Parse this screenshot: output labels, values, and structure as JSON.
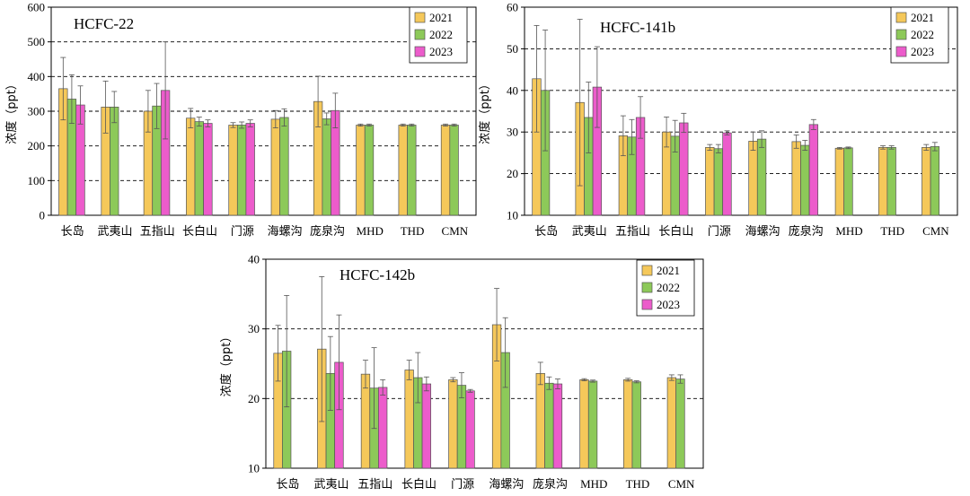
{
  "chart_data": [
    {
      "type": "bar",
      "title": "HCFC-22",
      "ylabel": "浓度（ppt）",
      "ylim": [
        0,
        600
      ],
      "yticks": [
        0,
        100,
        200,
        300,
        400,
        500,
        600
      ],
      "grid": "dashed-horizontal",
      "legend_position": "top-right",
      "categories": [
        "长岛",
        "武夷山",
        "五指山",
        "长白山",
        "门源",
        "海螺沟",
        "庞泉沟",
        "MHD",
        "THD",
        "CMN"
      ],
      "series": [
        {
          "name": "2021",
          "color": "#F5C85A",
          "values": [
            365,
            312,
            300,
            280,
            260,
            277,
            328,
            260,
            260,
            260
          ],
          "errors": [
            90,
            75,
            60,
            28,
            7,
            25,
            73,
            3,
            3,
            3
          ]
        },
        {
          "name": "2022",
          "color": "#8DC959",
          "values": [
            335,
            312,
            315,
            270,
            260,
            282,
            278,
            260,
            260,
            260
          ],
          "errors": [
            70,
            45,
            65,
            13,
            9,
            25,
            17,
            3,
            3,
            3
          ]
        },
        {
          "name": "2023",
          "color": "#EC5CCB",
          "values": [
            318,
            null,
            360,
            265,
            265,
            null,
            302,
            null,
            null,
            null
          ],
          "errors": [
            55,
            null,
            140,
            10,
            10,
            null,
            50,
            null,
            null,
            null
          ]
        }
      ]
    },
    {
      "type": "bar",
      "title": "HCFC-141b",
      "ylabel": "浓度（ppt）",
      "ylim": [
        10,
        60
      ],
      "yticks": [
        10,
        20,
        30,
        40,
        50,
        60
      ],
      "grid": "dashed-horizontal",
      "legend_position": "top-right",
      "categories": [
        "长岛",
        "武夷山",
        "五指山",
        "长白山",
        "门源",
        "海螺沟",
        "庞泉沟",
        "MHD",
        "THD",
        "CMN"
      ],
      "series": [
        {
          "name": "2021",
          "color": "#F5C85A",
          "values": [
            42.8,
            37.1,
            29.1,
            30,
            26.3,
            27.8,
            27.7,
            26.1,
            26.3,
            26.3
          ],
          "errors": [
            12.8,
            20,
            4.8,
            3.6,
            0.7,
            2.2,
            1.6,
            0.2,
            0.4,
            0.7
          ]
        },
        {
          "name": "2022",
          "color": "#8DC959",
          "values": [
            40,
            33.5,
            28.8,
            29,
            26,
            28.3,
            26.8,
            26.2,
            26.3,
            26.5
          ],
          "errors": [
            14.5,
            8.5,
            4.2,
            3.8,
            1,
            2,
            1.2,
            0.2,
            0.4,
            1
          ]
        },
        {
          "name": "2023",
          "color": "#EC5CCB",
          "values": [
            null,
            40.8,
            33.5,
            32.2,
            29.8,
            null,
            31.8,
            null,
            null,
            null
          ],
          "errors": [
            null,
            9.7,
            5,
            2.3,
            0.5,
            null,
            1.2,
            null,
            null,
            null
          ]
        }
      ]
    },
    {
      "type": "bar",
      "title": "HCFC-142b",
      "ylabel": "浓度（ppt）",
      "ylim": [
        10,
        40
      ],
      "yticks": [
        10,
        20,
        30,
        40
      ],
      "grid": "dashed-horizontal",
      "legend_position": "top-right",
      "categories": [
        "长岛",
        "武夷山",
        "五指山",
        "长白山",
        "门源",
        "海螺沟",
        "庞泉沟",
        "MHD",
        "THD",
        "CMN"
      ],
      "series": [
        {
          "name": "2021",
          "color": "#F5C85A",
          "values": [
            26.5,
            27.1,
            23.5,
            24.1,
            22.7,
            30.6,
            23.6,
            22.7,
            22.7,
            23
          ],
          "errors": [
            4,
            10.4,
            2,
            1.4,
            0.3,
            5.2,
            1.6,
            0.15,
            0.2,
            0.4
          ]
        },
        {
          "name": "2022",
          "color": "#8DC959",
          "values": [
            26.8,
            23.6,
            21.5,
            23,
            21.9,
            26.6,
            22.2,
            22.5,
            22.4,
            22.8
          ],
          "errors": [
            8,
            5.3,
            5.8,
            3.6,
            1.8,
            5,
            0.9,
            0.15,
            0.15,
            0.6
          ]
        },
        {
          "name": "2023",
          "color": "#EC5CCB",
          "values": [
            null,
            25.2,
            21.6,
            22.1,
            21.1,
            null,
            22.1,
            null,
            null,
            null
          ],
          "errors": [
            null,
            6.8,
            1.1,
            1,
            0.2,
            null,
            0.7,
            null,
            null,
            null
          ]
        }
      ]
    }
  ]
}
